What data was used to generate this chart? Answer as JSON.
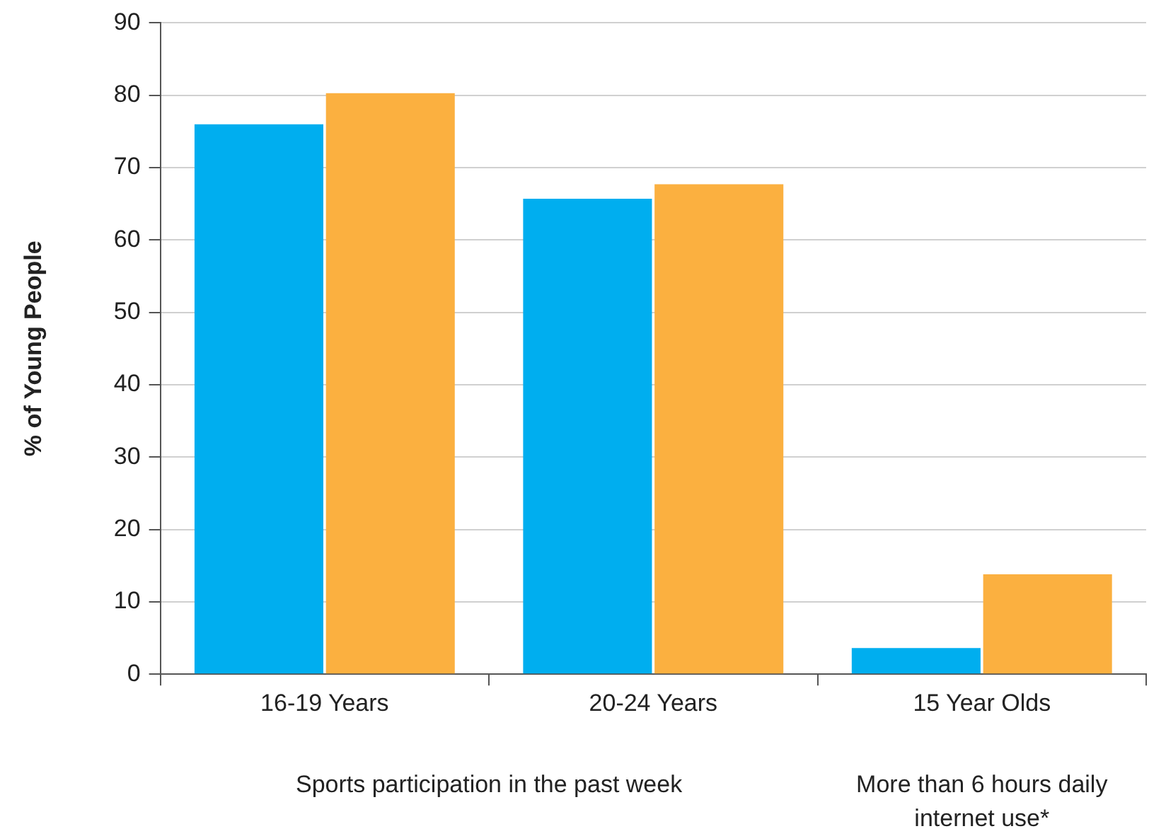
{
  "chart_data": {
    "type": "bar",
    "ylabel": "% of Young People",
    "categories": [
      "16-19 Years",
      "20-24 Years",
      "15 Year Olds"
    ],
    "series": [
      {
        "color": "#00aeef",
        "values": [
          76,
          65.7,
          3.6
        ]
      },
      {
        "color": "#fbb040",
        "values": [
          80.3,
          67.7,
          13.8
        ]
      }
    ],
    "ylim": [
      0,
      90
    ],
    "yticks": [
      0,
      10,
      20,
      30,
      40,
      50,
      60,
      70,
      80,
      90
    ],
    "grid": "y",
    "legend": false,
    "annotations": [
      "Sports participation in the past week",
      "More than 6 hours daily internet use*"
    ]
  }
}
